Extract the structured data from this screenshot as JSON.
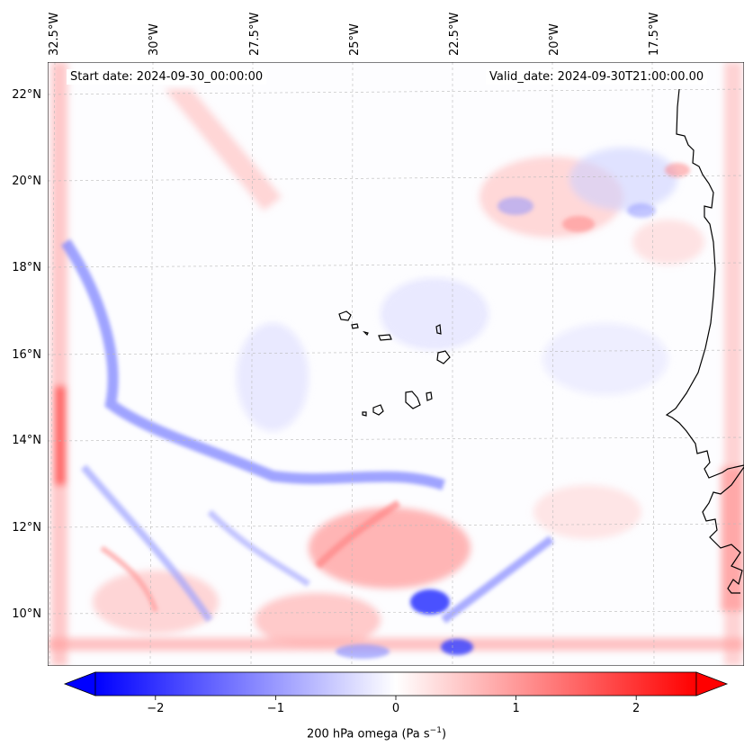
{
  "map": {
    "start_date": "Start date: 2024-09-30_00:00:00",
    "valid_date": "Valid_date: 2024-09-30T21:00:00.00",
    "variable_label": "200 hPa omega (Pa s",
    "variable_unit_sup": "−1",
    "variable_label_close": ")",
    "lon_labels": [
      "32.5°W",
      "30°W",
      "27.5°W",
      "25°W",
      "22.5°W",
      "20°W",
      "17.5°W"
    ],
    "lat_labels": [
      "22°N",
      "20°N",
      "18°N",
      "16°N",
      "14°N",
      "12°N",
      "10°N"
    ],
    "extent": {
      "lon_min": -32.6,
      "lon_max": -15.2,
      "lat_min": 8.9,
      "lat_max": 22.7
    },
    "colormap": [
      "#0000ff",
      "#ffffff",
      "#ff0000"
    ],
    "coast_color": "#000000"
  },
  "colorbar": {
    "min": -2.5,
    "max": 2.5,
    "ticks": [
      {
        "value": -2,
        "label": "−2"
      },
      {
        "value": -1,
        "label": "−1"
      },
      {
        "value": 0,
        "label": "0"
      },
      {
        "value": 1,
        "label": "1"
      },
      {
        "value": 2,
        "label": "2"
      }
    ]
  }
}
